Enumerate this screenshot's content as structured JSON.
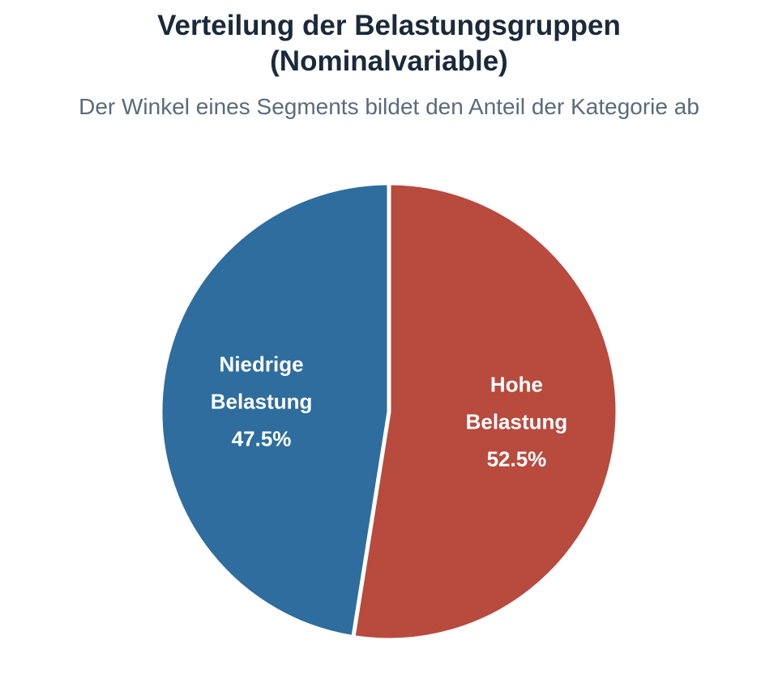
{
  "chart_data": {
    "type": "pie",
    "title_line1": "Verteilung der Belastungsgruppen",
    "title_line2": "(Nominalvariable)",
    "subtitle": "Der Winkel eines Segments bildet den Anteil der Kategorie ab",
    "start_angle": "12 o'clock",
    "direction": "clockwise",
    "slices": [
      {
        "label_line1": "Hohe",
        "label_line2": "Belastung",
        "value": 52.5,
        "value_text": "52.5%",
        "color": "#b84a3e"
      },
      {
        "label_line1": "Niedrige",
        "label_line2": "Belastung",
        "value": 47.5,
        "value_text": "47.5%",
        "color": "#2e6d9e"
      }
    ]
  }
}
